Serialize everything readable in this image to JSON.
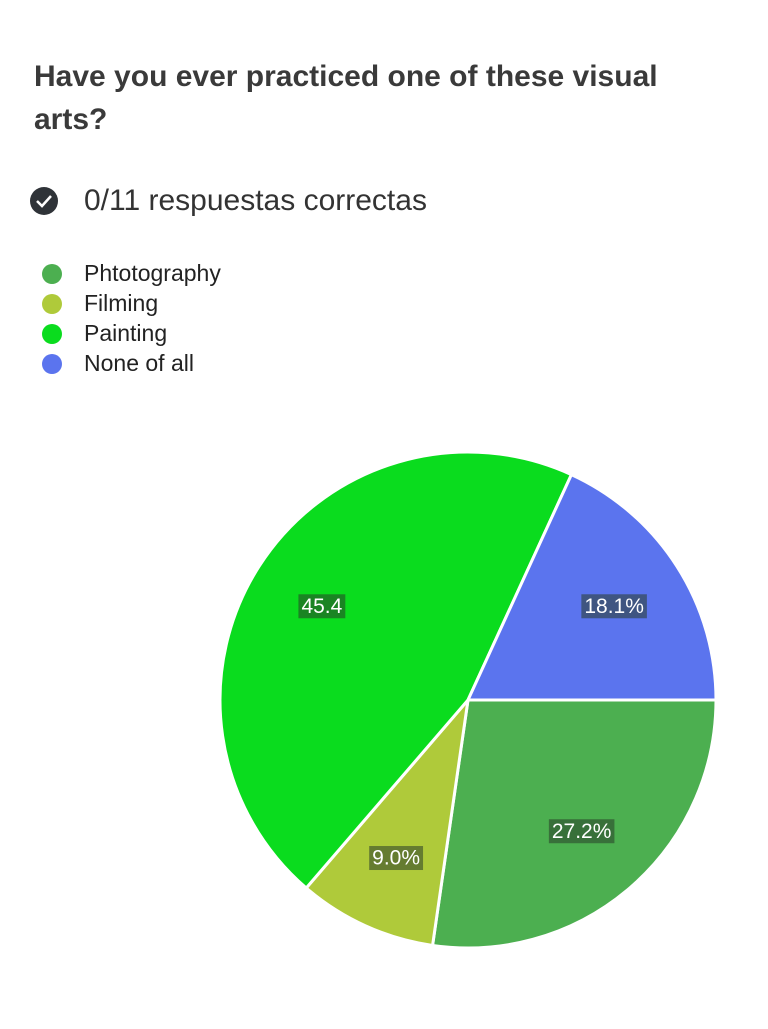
{
  "chart_data": {
    "type": "pie",
    "title": "Have you ever practiced one of these visual arts?",
    "subtitle": "0/11 respuestas correctas",
    "categories": [
      "Phtotography",
      "Filming",
      "Painting",
      "None of all"
    ],
    "values": [
      27.2,
      9.0,
      45.4,
      18.1
    ],
    "value_labels": [
      "27.2%",
      "9.0%",
      "45.4",
      "18.1%"
    ],
    "colors": [
      "#4caf50",
      "#afca3a",
      "#0adc1e",
      "#5b74ee"
    ],
    "legend": "top-left"
  }
}
